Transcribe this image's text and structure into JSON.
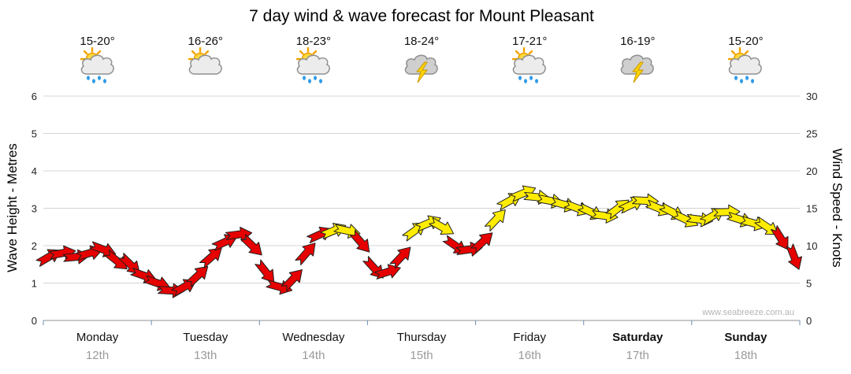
{
  "title": "7 day wind & wave forecast for Mount Pleasant",
  "watermark": "www.seabreeze.com.au",
  "axes": {
    "left_label": "Wave Height - Metres",
    "right_label": "Wind Speed - Knots",
    "left_ticks": [
      0,
      1,
      2,
      3,
      4,
      5,
      6
    ],
    "right_ticks": [
      0,
      5,
      10,
      15,
      20,
      25,
      30
    ]
  },
  "days": [
    {
      "name": "Monday",
      "date": "12th",
      "temp": "15-20°",
      "icon": "sun-cloud-rain",
      "bold": false
    },
    {
      "name": "Tuesday",
      "date": "13th",
      "temp": "16-26°",
      "icon": "sun-cloud",
      "bold": false
    },
    {
      "name": "Wednesday",
      "date": "14th",
      "temp": "18-23°",
      "icon": "sun-cloud-rain",
      "bold": false
    },
    {
      "name": "Thursday",
      "date": "15th",
      "temp": "18-24°",
      "icon": "storm",
      "bold": false
    },
    {
      "name": "Friday",
      "date": "16th",
      "temp": "17-21°",
      "icon": "sun-cloud-rain",
      "bold": false
    },
    {
      "name": "Saturday",
      "date": "17th",
      "temp": "16-19°",
      "icon": "storm",
      "bold": true
    },
    {
      "name": "Sunday",
      "date": "18th",
      "temp": "15-20°",
      "icon": "sun-cloud-rain",
      "bold": true
    }
  ],
  "chart_data": {
    "type": "line",
    "title": "7 day wind & wave forecast for Mount Pleasant",
    "x_categories": [
      "Monday 12th",
      "Tuesday 13th",
      "Wednesday 14th",
      "Thursday 15th",
      "Friday 16th",
      "Saturday 17th",
      "Sunday 18th"
    ],
    "points_per_day": 8,
    "series": [
      {
        "name": "Wind Speed",
        "units": "knots",
        "marker": "wind-arrow",
        "values": [
          8.5,
          9,
          8.5,
          9,
          9.5,
          8,
          7.5,
          6,
          5,
          4,
          4.5,
          6,
          8.5,
          10.5,
          11.5,
          10,
          6.5,
          4.5,
          5.5,
          9,
          11.5,
          12,
          12,
          10.5,
          7,
          6.5,
          8.5,
          12,
          13,
          12.5,
          10,
          9.5,
          10.5,
          13.5,
          16,
          17,
          16.5,
          16,
          15.5,
          15,
          14.5,
          14,
          15,
          15.5,
          16,
          15,
          14.5,
          13.5,
          13.5,
          14,
          14.5,
          13.5,
          13,
          12.5,
          11,
          8.5
        ]
      }
    ],
    "ylabel_left": "Wave Height - Metres",
    "ylabel_right": "Wind Speed - Knots",
    "ylim_left_metres": [
      0,
      6
    ],
    "ylim_right_knots": [
      0,
      30
    ],
    "grid": "horizontal",
    "color_threshold_knots": 12,
    "marker_colors": {
      "low_wind": "#e60000",
      "high_wind": "#ffec00"
    }
  }
}
